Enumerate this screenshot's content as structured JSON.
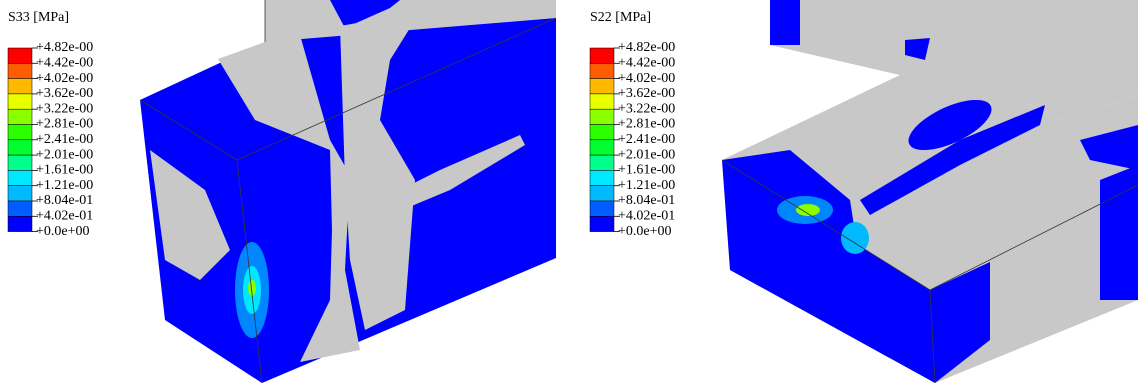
{
  "panels": [
    {
      "title": "S33 [MPa]",
      "legend": {
        "labels": [
          "+4.82e-00",
          "+4.42e-00",
          "+4.02e-00",
          "+3.62e-00",
          "+3.22e-00",
          "+2.81e-00",
          "+2.41e-00",
          "+2.01e-00",
          "+1.61e-00",
          "+1.21e-00",
          "+8.04e-01",
          "+4.02e-01",
          "+0.0e+00"
        ],
        "colors": [
          "#ff0000",
          "#ff5d00",
          "#ffb900",
          "#e8ff00",
          "#8bff00",
          "#2eff00",
          "#00ff2e",
          "#00ff8b",
          "#00e8ff",
          "#00b9ff",
          "#005dff",
          "#0000ff"
        ]
      }
    },
    {
      "title": "S22 [MPa]",
      "legend": {
        "labels": [
          "+4.82e-00",
          "+4.42e-00",
          "+4.02e-00",
          "+3.62e-00",
          "+3.22e-00",
          "+2.81e-00",
          "+2.41e-00",
          "+2.01e-00",
          "+1.61e-00",
          "+1.21e-00",
          "+8.04e-01",
          "+4.02e-01",
          "+0.0e+00"
        ],
        "colors": [
          "#ff0000",
          "#ff5d00",
          "#ffb900",
          "#e8ff00",
          "#8bff00",
          "#2eff00",
          "#00ff2e",
          "#00ff8b",
          "#00e8ff",
          "#00b9ff",
          "#005dff",
          "#0000ff"
        ]
      }
    }
  ]
}
